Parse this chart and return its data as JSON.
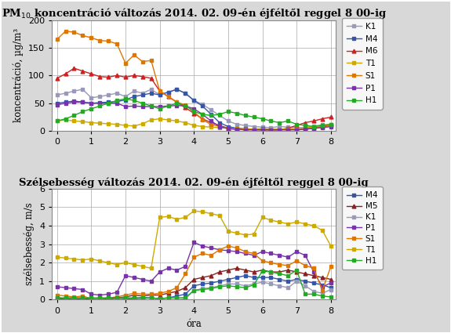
{
  "title1": "PM$_{10}$ koncentráció változás 2014. 02. 09-én éjféltől reggel 8 00-ig",
  "title2": "Szélsebesség változás 2014. 02. 09-én éjféltől reggel 8 00-ig",
  "xlabel": "óra",
  "ylabel1": "koncentráció, µg/m³",
  "ylabel2": "szélsebesség, m/s",
  "x": [
    0,
    0.25,
    0.5,
    0.75,
    1,
    1.25,
    1.5,
    1.75,
    2,
    2.25,
    2.5,
    2.75,
    3,
    3.25,
    3.5,
    3.75,
    4,
    4.25,
    4.5,
    4.75,
    5,
    5.25,
    5.5,
    5.75,
    6,
    6.25,
    6.5,
    6.75,
    7,
    7.25,
    7.5,
    7.75,
    8
  ],
  "pm10": {
    "K1": {
      "color": "#9999bb",
      "marker": "s",
      "data": [
        65,
        68,
        72,
        75,
        60,
        62,
        65,
        68,
        62,
        72,
        68,
        75,
        65,
        70,
        75,
        68,
        55,
        48,
        38,
        28,
        18,
        12,
        10,
        8,
        7,
        6,
        8,
        7,
        6,
        6,
        9,
        11,
        11
      ]
    },
    "M4": {
      "color": "#3355aa",
      "marker": "s",
      "data": [
        50,
        52,
        54,
        52,
        50,
        51,
        52,
        53,
        56,
        62,
        65,
        68,
        65,
        70,
        75,
        68,
        55,
        45,
        30,
        15,
        8,
        5,
        4,
        3,
        4,
        3,
        3,
        4,
        3,
        3,
        5,
        8,
        10
      ]
    },
    "M6": {
      "color": "#cc2222",
      "marker": "^",
      "data": [
        95,
        103,
        113,
        108,
        103,
        98,
        97,
        100,
        97,
        100,
        98,
        95,
        72,
        62,
        52,
        42,
        32,
        22,
        15,
        10,
        5,
        4,
        3,
        3,
        2,
        2,
        2,
        5,
        10,
        15,
        18,
        22,
        25
      ]
    },
    "T1": {
      "color": "#ccaa00",
      "marker": "s",
      "data": [
        18,
        20,
        18,
        17,
        15,
        14,
        13,
        12,
        10,
        9,
        13,
        20,
        22,
        20,
        18,
        15,
        10,
        8,
        7,
        6,
        5,
        4,
        3,
        3,
        3,
        3,
        3,
        3,
        3,
        5,
        8,
        10,
        12
      ]
    },
    "S1": {
      "color": "#dd7700",
      "marker": "s",
      "data": [
        165,
        180,
        178,
        172,
        168,
        163,
        162,
        157,
        122,
        137,
        125,
        127,
        72,
        62,
        52,
        47,
        35,
        20,
        12,
        8,
        5,
        3,
        3,
        2,
        2,
        2,
        2,
        3,
        3,
        5,
        5,
        8,
        10
      ]
    },
    "P1": {
      "color": "#7733aa",
      "marker": "s",
      "data": [
        47,
        50,
        52,
        52,
        50,
        50,
        50,
        50,
        44,
        45,
        44,
        44,
        44,
        45,
        46,
        45,
        40,
        30,
        18,
        8,
        4,
        3,
        2,
        2,
        2,
        2,
        2,
        2,
        2,
        3,
        5,
        6,
        8
      ]
    },
    "H1": {
      "color": "#22aa22",
      "marker": "s",
      "data": [
        18,
        22,
        28,
        35,
        40,
        45,
        50,
        55,
        58,
        55,
        50,
        45,
        40,
        45,
        50,
        46,
        35,
        30,
        28,
        30,
        35,
        32,
        28,
        25,
        22,
        18,
        15,
        18,
        12,
        10,
        8,
        10,
        12
      ]
    }
  },
  "wind": {
    "M4": {
      "color": "#3355aa",
      "marker": "s",
      "data": [
        0.05,
        0.02,
        0.03,
        0.02,
        0.02,
        0.02,
        0.05,
        0.08,
        0.05,
        0.05,
        0.08,
        0.1,
        0.05,
        0.1,
        0.2,
        0.3,
        0.75,
        0.85,
        0.9,
        1.0,
        1.1,
        1.2,
        1.3,
        1.2,
        1.2,
        1.2,
        1.1,
        1.0,
        1.1,
        1.0,
        0.9,
        0.8,
        0.65
      ]
    },
    "M5": {
      "color": "#882222",
      "marker": "^",
      "data": [
        0.1,
        0.05,
        0.05,
        0.05,
        0.05,
        0.05,
        0.05,
        0.1,
        0.15,
        0.25,
        0.2,
        0.25,
        0.25,
        0.35,
        0.45,
        0.65,
        1.1,
        1.2,
        1.3,
        1.5,
        1.6,
        1.7,
        1.6,
        1.5,
        1.6,
        1.5,
        1.5,
        1.6,
        1.5,
        1.4,
        1.3,
        1.2,
        1.1
      ]
    },
    "K1": {
      "color": "#9999bb",
      "marker": "s",
      "data": [
        0.0,
        0.0,
        0.0,
        0.0,
        0.0,
        0.0,
        0.0,
        0.0,
        0.0,
        0.0,
        0.0,
        0.0,
        0.0,
        0.0,
        0.0,
        0.05,
        0.5,
        0.6,
        0.65,
        0.75,
        0.85,
        0.85,
        0.75,
        0.85,
        0.95,
        0.85,
        0.75,
        0.65,
        1.0,
        0.75,
        0.45,
        0.35,
        0.55
      ]
    },
    "P1": {
      "color": "#7733aa",
      "marker": "s",
      "data": [
        0.7,
        0.65,
        0.6,
        0.55,
        0.3,
        0.25,
        0.3,
        0.4,
        1.3,
        1.2,
        1.1,
        1.0,
        1.5,
        1.7,
        1.6,
        1.8,
        3.1,
        2.9,
        2.8,
        2.7,
        2.65,
        2.6,
        2.5,
        2.4,
        2.6,
        2.5,
        2.4,
        2.3,
        2.6,
        2.4,
        1.5,
        0.7,
        0.9
      ]
    },
    "S1": {
      "color": "#dd7700",
      "marker": "s",
      "data": [
        0.25,
        0.2,
        0.15,
        0.2,
        0.05,
        0.05,
        0.1,
        0.15,
        0.25,
        0.35,
        0.3,
        0.3,
        0.35,
        0.45,
        0.65,
        1.4,
        2.3,
        2.5,
        2.4,
        2.7,
        2.9,
        2.8,
        2.6,
        2.5,
        2.1,
        2.0,
        1.9,
        1.85,
        2.1,
        1.85,
        1.7,
        0.5,
        1.8
      ]
    },
    "T1": {
      "color": "#ccaa00",
      "marker": "s",
      "data": [
        2.3,
        2.25,
        2.2,
        2.15,
        2.2,
        2.1,
        2.0,
        1.9,
        2.0,
        1.9,
        1.8,
        1.7,
        4.45,
        4.5,
        4.35,
        4.45,
        4.8,
        4.75,
        4.65,
        4.55,
        3.7,
        3.6,
        3.5,
        3.55,
        4.45,
        4.3,
        4.2,
        4.1,
        4.2,
        4.1,
        4.0,
        3.75,
        2.9
      ]
    },
    "H1": {
      "color": "#22aa22",
      "marker": "s",
      "data": [
        0.1,
        0.1,
        0.12,
        0.1,
        0.1,
        0.1,
        0.1,
        0.12,
        0.1,
        0.1,
        0.12,
        0.1,
        0.05,
        0.1,
        0.1,
        0.12,
        0.5,
        0.55,
        0.6,
        0.7,
        0.75,
        0.7,
        0.65,
        0.8,
        1.55,
        1.5,
        1.4,
        1.3,
        1.6,
        0.3,
        0.3,
        0.2,
        0.15
      ]
    }
  },
  "ylim1": [
    0,
    200
  ],
  "ylim2": [
    0,
    6
  ],
  "yticks1": [
    0,
    50,
    100,
    150,
    200
  ],
  "yticks2": [
    0,
    1,
    2,
    3,
    4,
    5,
    6
  ],
  "xticks": [
    0,
    1,
    2,
    3,
    4,
    5,
    6,
    7,
    8
  ],
  "bg_color": "#c8c8c8",
  "plot_bg": "#ffffff",
  "legend_bg": "#ffffff",
  "outer_bg": "#d8d8d8",
  "title_fontsize": 9.5,
  "label_fontsize": 8.5,
  "tick_fontsize": 8,
  "legend_fontsize": 7.5,
  "linewidth": 1.0,
  "markersize": 3.5
}
